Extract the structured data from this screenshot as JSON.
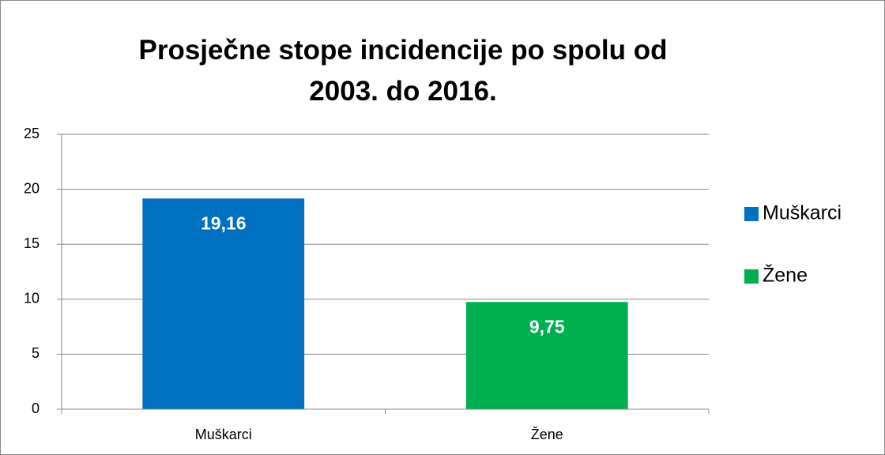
{
  "chart_data": {
    "type": "bar",
    "title": "Prosječne stope incidencije po spolu od 2003. do 2016.",
    "categories": [
      "Muškarci",
      "Žene"
    ],
    "values": [
      19.16,
      9.75
    ],
    "value_labels": [
      "19,16",
      "9,75"
    ],
    "colors": [
      "#0070c0",
      "#00b050"
    ],
    "ylim": [
      0,
      25
    ],
    "yticks": [
      0,
      5,
      10,
      15,
      20,
      25
    ],
    "grid": true,
    "legend": "right"
  }
}
